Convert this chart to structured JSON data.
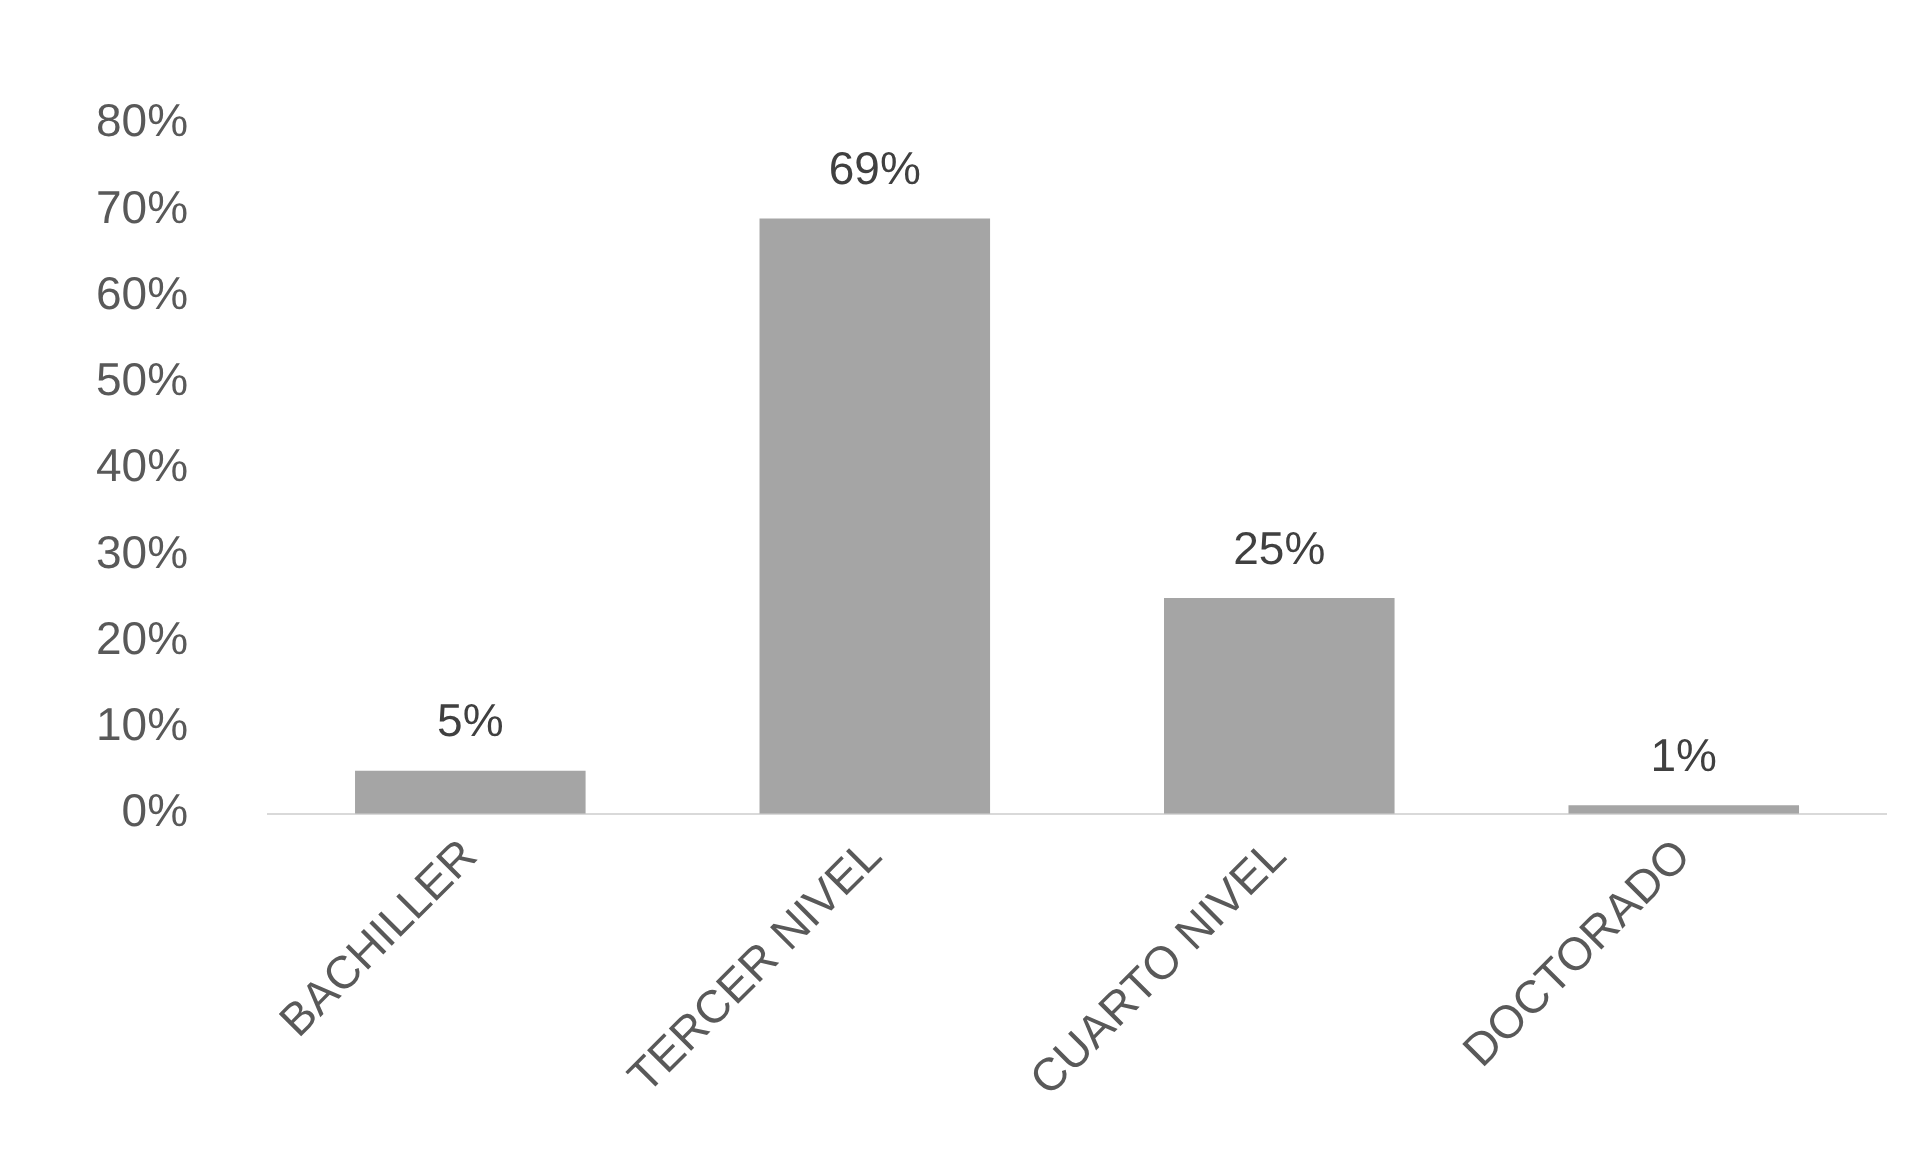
{
  "chart_data": {
    "type": "bar",
    "categories": [
      "BACHILLER",
      "TERCER NIVEL",
      "CUARTO NIVEL",
      "DOCTORADO"
    ],
    "values": [
      5,
      69,
      25,
      1
    ],
    "value_labels": [
      "5%",
      "69%",
      "25%",
      "1%"
    ],
    "color": "#a5a5a5",
    "ylim": [
      0,
      80
    ],
    "yticks": [
      {
        "value": 0,
        "label": "0%"
      },
      {
        "value": 10,
        "label": "10%"
      },
      {
        "value": 20,
        "label": "20%"
      },
      {
        "value": 30,
        "label": "30%"
      },
      {
        "value": 40,
        "label": "40%"
      },
      {
        "value": 50,
        "label": "50%"
      },
      {
        "value": 60,
        "label": "60%"
      },
      {
        "value": 70,
        "label": "70%"
      },
      {
        "value": 80,
        "label": "80%"
      }
    ],
    "grid": false,
    "legend": false
  }
}
